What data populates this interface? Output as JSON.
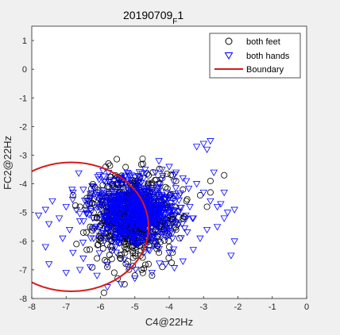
{
  "chart_data": {
    "type": "scatter",
    "title": "20190709",
    "title_subscript": "F",
    "title_suffix": "1",
    "xlabel": "C4@22Hz",
    "ylabel": "FC2@22Hz",
    "xlim": [
      -8,
      0
    ],
    "ylim": [
      -8,
      1.5
    ],
    "xticks": [
      -8,
      -7,
      -6,
      -5,
      -4,
      -3,
      -2,
      -1,
      0
    ],
    "yticks": [
      -8,
      -7,
      -6,
      -5,
      -4,
      -3,
      -2,
      -1,
      0,
      1
    ],
    "grid": false,
    "legend_position": "top-right",
    "series": [
      {
        "name": "both feet",
        "marker": "circle",
        "color": "#000000",
        "center": [
          -5.1,
          -5.1
        ],
        "spread": [
          0.55,
          0.65
        ],
        "points": [
          [
            -6.4,
            -4.5
          ],
          [
            -6.6,
            -4.8
          ],
          [
            -6.2,
            -5.0
          ],
          [
            -6.3,
            -5.5
          ],
          [
            -6.7,
            -6.1
          ],
          [
            -6.0,
            -6.0
          ],
          [
            -6.1,
            -6.6
          ],
          [
            -5.8,
            -6.9
          ],
          [
            -5.6,
            -7.1
          ],
          [
            -5.5,
            -7.3
          ],
          [
            -5.3,
            -7.5
          ],
          [
            -5.0,
            -7.2
          ],
          [
            -4.8,
            -7.0
          ],
          [
            -4.6,
            -6.8
          ],
          [
            -4.3,
            -6.4
          ],
          [
            -4.0,
            -6.2
          ],
          [
            -3.8,
            -5.6
          ],
          [
            -3.6,
            -5.2
          ],
          [
            -3.5,
            -4.6
          ],
          [
            -3.6,
            -4.2
          ],
          [
            -3.8,
            -3.9
          ],
          [
            -3.9,
            -3.7
          ],
          [
            -4.2,
            -3.8
          ],
          [
            -4.6,
            -3.7
          ],
          [
            -5.0,
            -3.9
          ],
          [
            -5.4,
            -4.0
          ],
          [
            -5.8,
            -4.1
          ],
          [
            -6.1,
            -4.3
          ],
          [
            -5.5,
            -4.4
          ],
          [
            -5.2,
            -4.6
          ],
          [
            -4.9,
            -4.8
          ],
          [
            -4.6,
            -5.3
          ],
          [
            -4.4,
            -5.6
          ],
          [
            -4.9,
            -5.9
          ],
          [
            -5.3,
            -6.2
          ],
          [
            -5.7,
            -5.8
          ],
          [
            -5.9,
            -5.3
          ],
          [
            -5.6,
            -5.0
          ],
          [
            -5.2,
            -5.4
          ],
          [
            -4.7,
            -5.0
          ],
          [
            -6.5,
            -5.7
          ],
          [
            -6.4,
            -6.3
          ],
          [
            -5.2,
            -6.7
          ],
          [
            -4.5,
            -7.2
          ],
          [
            -4.2,
            -6.9
          ],
          [
            -3.7,
            -5.9
          ],
          [
            -3.1,
            -4.4
          ],
          [
            -2.9,
            -4.8
          ],
          [
            -2.8,
            -3.9
          ],
          [
            -2.4,
            -3.7
          ],
          [
            -2.8,
            -4.3
          ],
          [
            -3.9,
            -6.4
          ],
          [
            -6.8,
            -4.4
          ],
          [
            -5.9,
            -7.8
          ]
        ]
      },
      {
        "name": "both hands",
        "marker": "triangle-down",
        "color": "#0000ff",
        "center": [
          -5.0,
          -5.0
        ],
        "spread": [
          0.6,
          0.55
        ],
        "points": [
          [
            -7.4,
            -4.6
          ],
          [
            -7.6,
            -4.9
          ],
          [
            -7.8,
            -5.1
          ],
          [
            -7.5,
            -5.4
          ],
          [
            -7.2,
            -5.2
          ],
          [
            -7.0,
            -4.8
          ],
          [
            -6.9,
            -5.6
          ],
          [
            -7.1,
            -5.9
          ],
          [
            -7.6,
            -6.2
          ],
          [
            -6.8,
            -6.4
          ],
          [
            -6.5,
            -6.6
          ],
          [
            -6.3,
            -6.9
          ],
          [
            -7.5,
            -6.8
          ],
          [
            -7.0,
            -7.1
          ],
          [
            -6.6,
            -7.0
          ],
          [
            -6.1,
            -7.2
          ],
          [
            -5.8,
            -7.6
          ],
          [
            -5.4,
            -7.5
          ],
          [
            -5.0,
            -7.3
          ],
          [
            -4.5,
            -7.1
          ],
          [
            -4.1,
            -6.8
          ],
          [
            -3.6,
            -6.7
          ],
          [
            -3.3,
            -6.3
          ],
          [
            -3.1,
            -5.9
          ],
          [
            -2.9,
            -5.6
          ],
          [
            -2.6,
            -5.5
          ],
          [
            -2.4,
            -5.2
          ],
          [
            -2.3,
            -5.0
          ],
          [
            -2.1,
            -4.9
          ],
          [
            -2.5,
            -4.7
          ],
          [
            -2.8,
            -4.6
          ],
          [
            -3.0,
            -4.3
          ],
          [
            -3.2,
            -4.0
          ],
          [
            -3.5,
            -3.9
          ],
          [
            -3.8,
            -3.6
          ],
          [
            -4.0,
            -3.4
          ],
          [
            -4.4,
            -3.6
          ],
          [
            -4.7,
            -3.5
          ],
          [
            -5.1,
            -3.7
          ],
          [
            -5.5,
            -3.8
          ],
          [
            -5.9,
            -3.9
          ],
          [
            -6.2,
            -4.1
          ],
          [
            -6.5,
            -4.2
          ],
          [
            -6.8,
            -4.3
          ],
          [
            -3.0,
            -2.6
          ],
          [
            -2.8,
            -2.5
          ],
          [
            -3.2,
            -2.7
          ],
          [
            -2.9,
            -2.8
          ],
          [
            -4.3,
            -3.2
          ],
          [
            -3.6,
            -3.8
          ],
          [
            -2.7,
            -3.6
          ],
          [
            -2.4,
            -4.3
          ],
          [
            -2.6,
            -4.8
          ],
          [
            -2.2,
            -6.5
          ],
          [
            -2.1,
            -6.0
          ],
          [
            -3.3,
            -5.2
          ],
          [
            -3.9,
            -5.9
          ],
          [
            -4.6,
            -6.3
          ],
          [
            -5.2,
            -6.9
          ],
          [
            -5.7,
            -6.3
          ],
          [
            -6.2,
            -5.9
          ],
          [
            -6.6,
            -5.3
          ],
          [
            -6.3,
            -4.7
          ],
          [
            -5.9,
            -4.4
          ],
          [
            -4.9,
            -4.1
          ],
          [
            -4.3,
            -4.0
          ],
          [
            -3.7,
            -4.4
          ],
          [
            -3.4,
            -4.8
          ]
        ]
      },
      {
        "name": "Boundary",
        "type": "line",
        "color": "#d7191c",
        "shape": "circle",
        "center": [
          -6.85,
          -5.5
        ],
        "radius": 2.25
      }
    ]
  }
}
